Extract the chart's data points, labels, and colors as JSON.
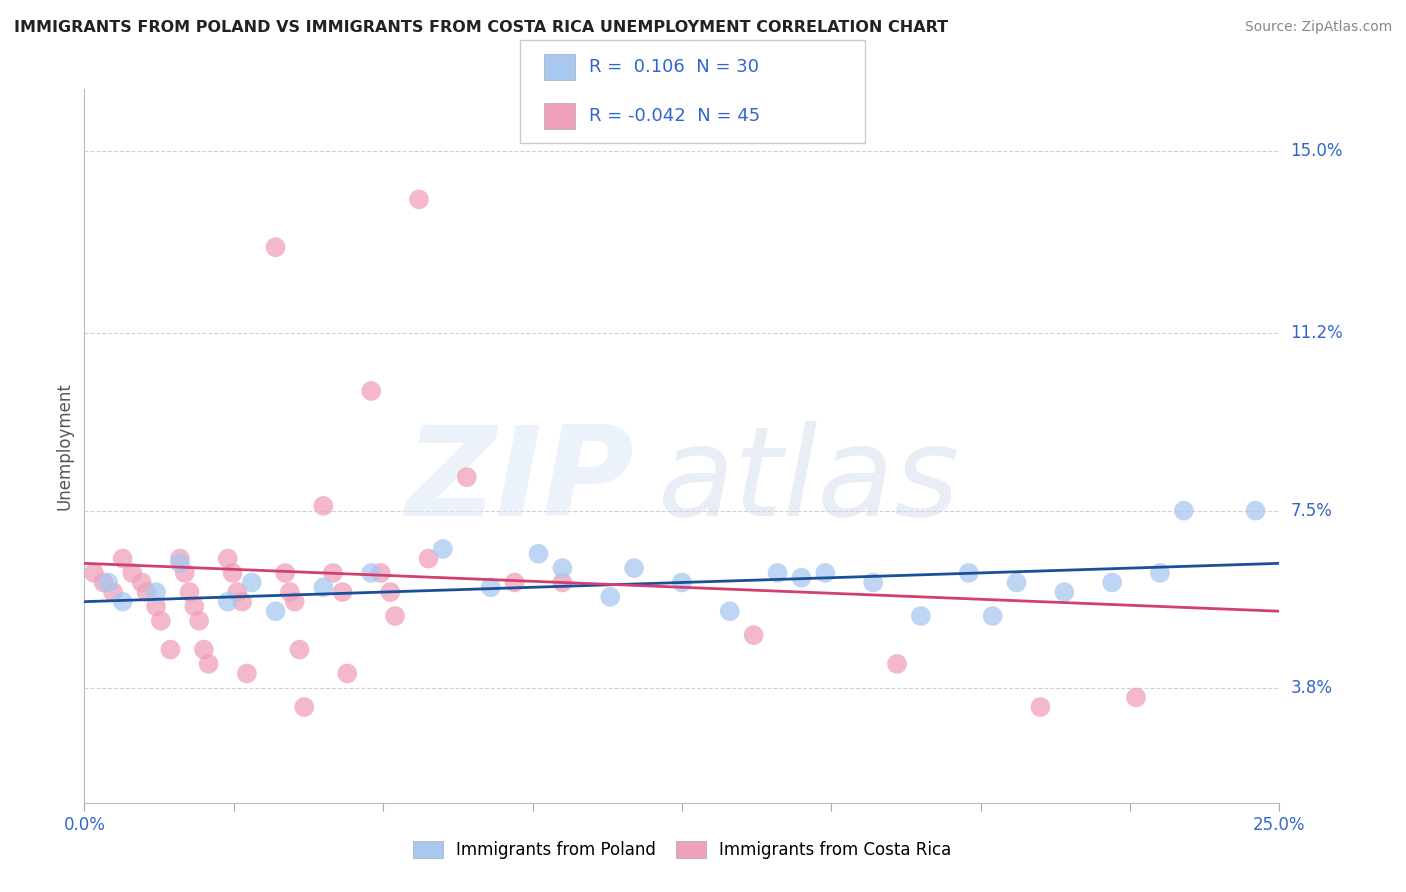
{
  "title": "IMMIGRANTS FROM POLAND VS IMMIGRANTS FROM COSTA RICA UNEMPLOYMENT CORRELATION CHART",
  "source": "Source: ZipAtlas.com",
  "ylabel": "Unemployment",
  "ytick_labels": [
    "3.8%",
    "7.5%",
    "11.2%",
    "15.0%"
  ],
  "ytick_values": [
    0.038,
    0.075,
    0.112,
    0.15
  ],
  "xtick_labels": [
    "0.0%",
    "25.0%"
  ],
  "xtick_values": [
    0.0,
    0.25
  ],
  "xmin": 0.0,
  "xmax": 0.25,
  "ymin": 0.014,
  "ymax": 0.163,
  "color_poland": "#a8c8f0",
  "color_costa_rica": "#f0a0b8",
  "color_line_poland": "#1a4f9c",
  "color_line_costa_rica": "#d04070",
  "color_grid": "#cccccc",
  "poland_scatter": [
    [
      0.005,
      0.06
    ],
    [
      0.008,
      0.056
    ],
    [
      0.015,
      0.058
    ],
    [
      0.02,
      0.064
    ],
    [
      0.03,
      0.056
    ],
    [
      0.035,
      0.06
    ],
    [
      0.04,
      0.054
    ],
    [
      0.05,
      0.059
    ],
    [
      0.06,
      0.062
    ],
    [
      0.075,
      0.067
    ],
    [
      0.085,
      0.059
    ],
    [
      0.095,
      0.066
    ],
    [
      0.1,
      0.063
    ],
    [
      0.11,
      0.057
    ],
    [
      0.115,
      0.063
    ],
    [
      0.125,
      0.06
    ],
    [
      0.135,
      0.054
    ],
    [
      0.145,
      0.062
    ],
    [
      0.15,
      0.061
    ],
    [
      0.155,
      0.062
    ],
    [
      0.165,
      0.06
    ],
    [
      0.175,
      0.053
    ],
    [
      0.185,
      0.062
    ],
    [
      0.19,
      0.053
    ],
    [
      0.195,
      0.06
    ],
    [
      0.205,
      0.058
    ],
    [
      0.215,
      0.06
    ],
    [
      0.225,
      0.062
    ],
    [
      0.23,
      0.075
    ],
    [
      0.245,
      0.075
    ]
  ],
  "costa_rica_scatter": [
    [
      0.002,
      0.062
    ],
    [
      0.004,
      0.06
    ],
    [
      0.006,
      0.058
    ],
    [
      0.008,
      0.065
    ],
    [
      0.01,
      0.062
    ],
    [
      0.012,
      0.06
    ],
    [
      0.013,
      0.058
    ],
    [
      0.015,
      0.055
    ],
    [
      0.016,
      0.052
    ],
    [
      0.018,
      0.046
    ],
    [
      0.02,
      0.065
    ],
    [
      0.021,
      0.062
    ],
    [
      0.022,
      0.058
    ],
    [
      0.023,
      0.055
    ],
    [
      0.024,
      0.052
    ],
    [
      0.025,
      0.046
    ],
    [
      0.026,
      0.043
    ],
    [
      0.03,
      0.065
    ],
    [
      0.031,
      0.062
    ],
    [
      0.032,
      0.058
    ],
    [
      0.033,
      0.056
    ],
    [
      0.034,
      0.041
    ],
    [
      0.04,
      0.13
    ],
    [
      0.042,
      0.062
    ],
    [
      0.043,
      0.058
    ],
    [
      0.044,
      0.056
    ],
    [
      0.045,
      0.046
    ],
    [
      0.046,
      0.034
    ],
    [
      0.05,
      0.076
    ],
    [
      0.052,
      0.062
    ],
    [
      0.054,
      0.058
    ],
    [
      0.055,
      0.041
    ],
    [
      0.06,
      0.1
    ],
    [
      0.062,
      0.062
    ],
    [
      0.064,
      0.058
    ],
    [
      0.065,
      0.053
    ],
    [
      0.07,
      0.14
    ],
    [
      0.072,
      0.065
    ],
    [
      0.08,
      0.082
    ],
    [
      0.09,
      0.06
    ],
    [
      0.1,
      0.06
    ],
    [
      0.14,
      0.049
    ],
    [
      0.17,
      0.043
    ],
    [
      0.2,
      0.034
    ],
    [
      0.22,
      0.036
    ]
  ],
  "poland_trend_x": [
    0.0,
    0.25
  ],
  "poland_trend_y": [
    0.056,
    0.064
  ],
  "costa_rica_trend_x": [
    0.0,
    0.25
  ],
  "costa_rica_trend_y": [
    0.064,
    0.054
  ],
  "legend1_text_r": "0.106",
  "legend1_text_n": "30",
  "legend2_text_r": "-0.042",
  "legend2_text_n": "45",
  "bottom_legend": [
    "Immigrants from Poland",
    "Immigrants from Costa Rica"
  ]
}
